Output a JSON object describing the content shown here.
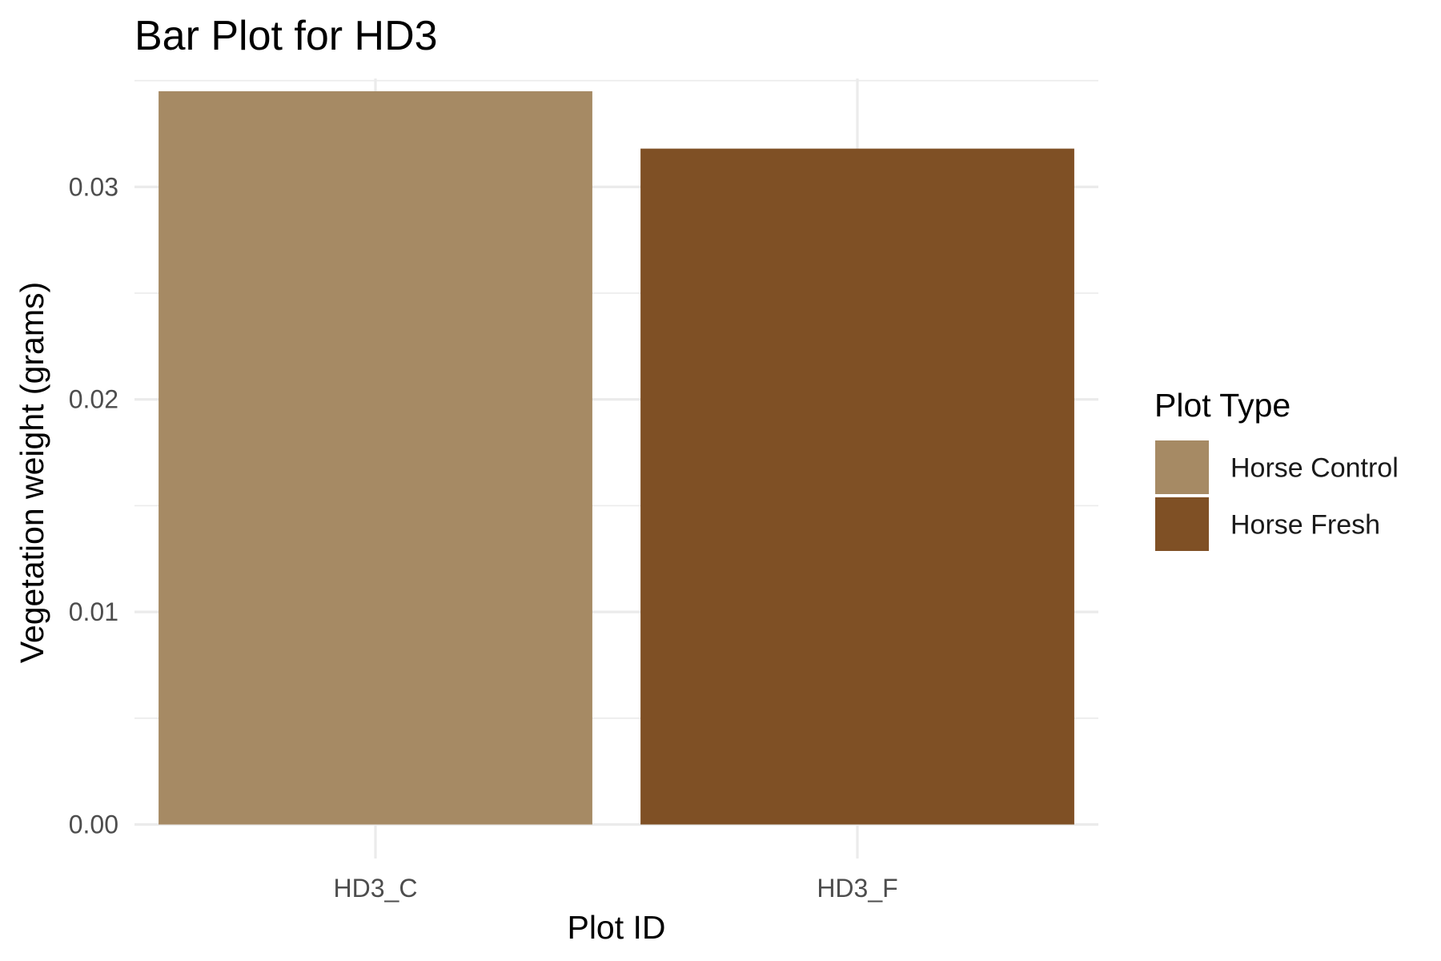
{
  "chart_data": {
    "type": "bar",
    "title": "Bar Plot for HD3",
    "xlabel": "Plot ID",
    "ylabel": "Vegetation weight (grams)",
    "categories": [
      "HD3_C",
      "HD3_F"
    ],
    "values": [
      0.0345,
      0.0318
    ],
    "fill_groups": [
      "Horse Control",
      "Horse Fresh"
    ],
    "colors": [
      "#a68a64",
      "#7f5025"
    ],
    "ylim": [
      -0.0016,
      0.0351
    ],
    "y_ticks": [
      0.0,
      0.01,
      0.02,
      0.03
    ],
    "y_tick_labels": [
      "0.00",
      "0.01",
      "0.02",
      "0.03"
    ],
    "grid": true,
    "legend": {
      "title": "Plot Type",
      "placement": "right",
      "entries": [
        {
          "label": "Horse Control",
          "color": "#a68a64"
        },
        {
          "label": "Horse Fresh",
          "color": "#7f5025"
        }
      ]
    }
  }
}
